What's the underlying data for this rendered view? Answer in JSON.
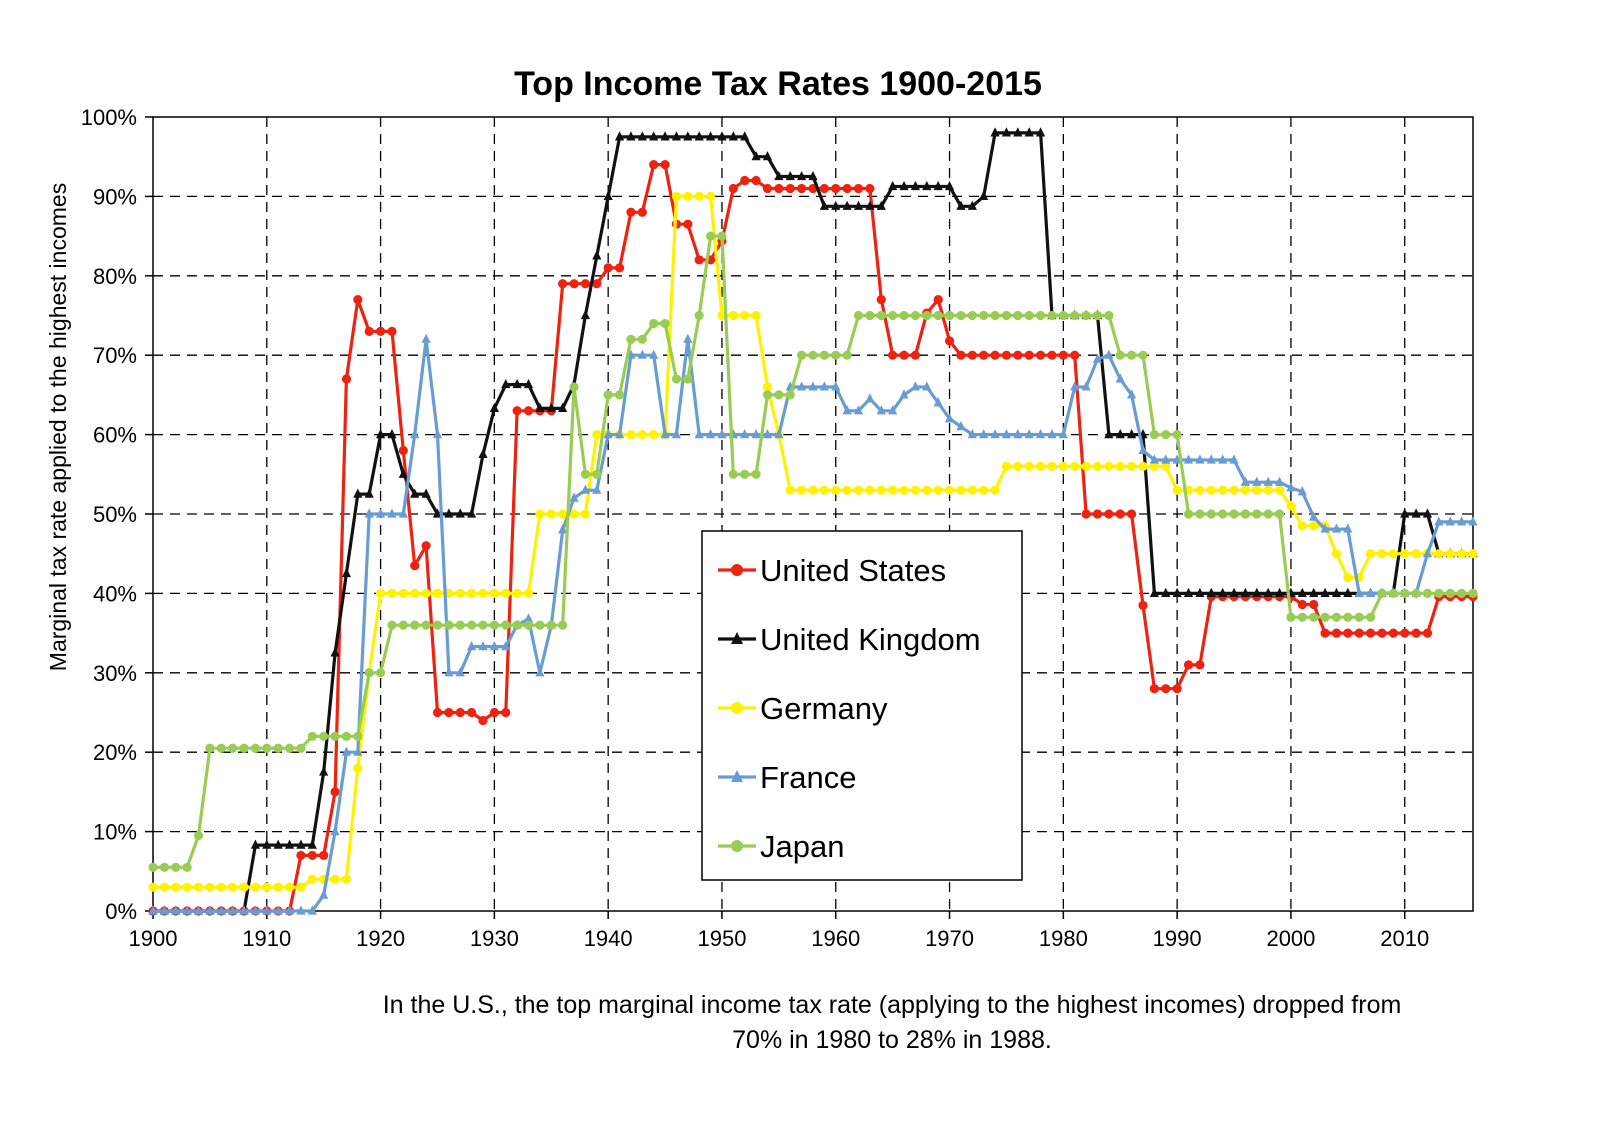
{
  "chart_data": {
    "type": "line",
    "title": "Top Income Tax Rates 1900-2015",
    "xlabel": "",
    "ylabel": "Marginal tax rate applied to the highest incomes",
    "xlim": [
      1900,
      2016
    ],
    "ylim": [
      0,
      100
    ],
    "xticks": [
      1900,
      1910,
      1920,
      1930,
      1940,
      1950,
      1960,
      1970,
      1980,
      1990,
      2000,
      2010
    ],
    "xtick_labels": [
      "1900",
      "1910",
      "1920",
      "1930",
      "1940",
      "1950",
      "1960",
      "1970",
      "1980",
      "1990",
      "2000",
      "2010"
    ],
    "yticks": [
      0,
      10,
      20,
      30,
      40,
      50,
      60,
      70,
      80,
      90,
      100
    ],
    "ytick_labels": [
      "0%",
      "10%",
      "20%",
      "30%",
      "40%",
      "50%",
      "60%",
      "70%",
      "80%",
      "90%",
      "100%"
    ],
    "grid": true,
    "legend_position": "center-right",
    "series": [
      {
        "name": "United States",
        "color": "#ee2211",
        "marker": "circle",
        "points": [
          [
            1900,
            0
          ],
          [
            1912,
            0
          ],
          [
            1913,
            7
          ],
          [
            1916,
            7
          ],
          [
            1916,
            15
          ],
          [
            1917,
            67
          ],
          [
            1918,
            77
          ],
          [
            1919,
            73
          ],
          [
            1921,
            73
          ],
          [
            1922,
            58
          ],
          [
            1923,
            43.5
          ],
          [
            1924,
            46
          ],
          [
            1925,
            25
          ],
          [
            1928,
            25
          ],
          [
            1929,
            24
          ],
          [
            1930,
            25
          ],
          [
            1931,
            25
          ],
          [
            1932,
            63
          ],
          [
            1935,
            63
          ],
          [
            1936,
            79
          ],
          [
            1940,
            79
          ],
          [
            1940,
            81
          ],
          [
            1941,
            81
          ],
          [
            1942,
            88
          ],
          [
            1943,
            88
          ],
          [
            1944,
            94
          ],
          [
            1945,
            94
          ],
          [
            1946,
            86.5
          ],
          [
            1947,
            86.5
          ],
          [
            1948,
            82
          ],
          [
            1949,
            82
          ],
          [
            1950,
            84.4
          ],
          [
            1951,
            91
          ],
          [
            1952,
            92
          ],
          [
            1953,
            92
          ],
          [
            1954,
            91
          ],
          [
            1963,
            91
          ],
          [
            1964,
            77
          ],
          [
            1965,
            70
          ],
          [
            1967,
            70
          ],
          [
            1968,
            75.3
          ],
          [
            1969,
            77
          ],
          [
            1970,
            71.8
          ],
          [
            1971,
            70
          ],
          [
            1981,
            70
          ],
          [
            1982,
            69.1
          ],
          [
            1982,
            50
          ],
          [
            1986,
            50
          ],
          [
            1987,
            38.5
          ],
          [
            1988,
            28
          ],
          [
            1990,
            28
          ],
          [
            1991,
            31
          ],
          [
            1992,
            31
          ],
          [
            1993,
            39.6
          ],
          [
            2000,
            39.6
          ],
          [
            2001,
            38.6
          ],
          [
            2002,
            38.6
          ],
          [
            2003,
            35
          ],
          [
            2012,
            35
          ],
          [
            2013,
            39.6
          ],
          [
            2016,
            39.6
          ]
        ]
      },
      {
        "name": "United Kingdom",
        "color": "#111111",
        "marker": "triangle",
        "points": [
          [
            1900,
            0
          ],
          [
            1909,
            0
          ],
          [
            1909,
            8.3
          ],
          [
            1914,
            8.3
          ],
          [
            1915,
            17.5
          ],
          [
            1916,
            32.5
          ],
          [
            1917,
            42.5
          ],
          [
            1918,
            42.5
          ],
          [
            1918,
            52.5
          ],
          [
            1919,
            52.5
          ],
          [
            1920,
            60
          ],
          [
            1921,
            60
          ],
          [
            1922,
            55
          ],
          [
            1923,
            52.5
          ],
          [
            1924,
            52.5
          ],
          [
            1925,
            50
          ],
          [
            1928,
            50
          ],
          [
            1929,
            57.5
          ],
          [
            1930,
            63.3
          ],
          [
            1931,
            66.3
          ],
          [
            1933,
            66.3
          ],
          [
            1934,
            63.3
          ],
          [
            1935,
            63.3
          ],
          [
            1936,
            63.3
          ],
          [
            1937,
            66.3
          ],
          [
            1938,
            75
          ],
          [
            1939,
            82.5
          ],
          [
            1940,
            90
          ],
          [
            1941,
            97.5
          ],
          [
            1952,
            97.5
          ],
          [
            1953,
            95
          ],
          [
            1954,
            95
          ],
          [
            1955,
            92.5
          ],
          [
            1958,
            92.5
          ],
          [
            1959,
            88.75
          ],
          [
            1964,
            88.75
          ],
          [
            1965,
            91.25
          ],
          [
            1970,
            91.25
          ],
          [
            1971,
            88.75
          ],
          [
            1972,
            88.75
          ],
          [
            1973,
            90
          ],
          [
            1974,
            98
          ],
          [
            1978,
            98
          ],
          [
            1979,
            75
          ],
          [
            1983,
            75
          ],
          [
            1984,
            60
          ],
          [
            1987,
            60
          ],
          [
            1988,
            40
          ],
          [
            2009,
            40
          ],
          [
            2010,
            50
          ],
          [
            2012,
            50
          ],
          [
            2013,
            45
          ],
          [
            2016,
            45
          ]
        ]
      },
      {
        "name": "Germany",
        "color": "#fff200",
        "marker": "circle",
        "points": [
          [
            1900,
            3
          ],
          [
            1913,
            3
          ],
          [
            1914,
            4
          ],
          [
            1917,
            4
          ],
          [
            1918,
            18
          ],
          [
            1919,
            30
          ],
          [
            1920,
            40
          ],
          [
            1931,
            40
          ],
          [
            1932,
            40
          ],
          [
            1933,
            40
          ],
          [
            1934,
            50
          ],
          [
            1938,
            50
          ],
          [
            1939,
            60
          ],
          [
            1945,
            60
          ],
          [
            1946,
            90
          ],
          [
            1949,
            90
          ],
          [
            1950,
            75
          ],
          [
            1953,
            75
          ],
          [
            1954,
            66
          ],
          [
            1955,
            60
          ],
          [
            1956,
            53
          ],
          [
            1974,
            53
          ],
          [
            1975,
            56
          ],
          [
            1989,
            56
          ],
          [
            1990,
            53
          ],
          [
            1999,
            53
          ],
          [
            2000,
            51
          ],
          [
            2001,
            48.5
          ],
          [
            2003,
            48.5
          ],
          [
            2004,
            45
          ],
          [
            2005,
            42
          ],
          [
            2006,
            42
          ],
          [
            2007,
            45
          ],
          [
            2016,
            45
          ]
        ]
      },
      {
        "name": "France",
        "color": "#6a9cd4",
        "marker": "triangle",
        "points": [
          [
            1900,
            0
          ],
          [
            1914,
            0
          ],
          [
            1915,
            2
          ],
          [
            1916,
            10
          ],
          [
            1917,
            20
          ],
          [
            1918,
            20
          ],
          [
            1919,
            50
          ],
          [
            1922,
            50
          ],
          [
            1923,
            60
          ],
          [
            1924,
            72
          ],
          [
            1925,
            60
          ],
          [
            1926,
            30
          ],
          [
            1927,
            30
          ],
          [
            1928,
            33.3
          ],
          [
            1931,
            33.3
          ],
          [
            1932,
            36
          ],
          [
            1933,
            36.8
          ],
          [
            1934,
            30
          ],
          [
            1935,
            36
          ],
          [
            1936,
            48
          ],
          [
            1937,
            52
          ],
          [
            1938,
            53
          ],
          [
            1939,
            53
          ],
          [
            1940,
            60
          ],
          [
            1941,
            60
          ],
          [
            1942,
            70
          ],
          [
            1944,
            70
          ],
          [
            1945,
            60
          ],
          [
            1946,
            60
          ],
          [
            1947,
            72
          ],
          [
            1948,
            60
          ],
          [
            1955,
            60
          ],
          [
            1956,
            66
          ],
          [
            1960,
            66
          ],
          [
            1961,
            63
          ],
          [
            1962,
            63
          ],
          [
            1963,
            64.5
          ],
          [
            1964,
            63
          ],
          [
            1965,
            63
          ],
          [
            1966,
            65
          ],
          [
            1967,
            66
          ],
          [
            1968,
            66
          ],
          [
            1969,
            64
          ],
          [
            1970,
            62
          ],
          [
            1971,
            61
          ],
          [
            1972,
            60
          ],
          [
            1980,
            60
          ],
          [
            1981,
            66
          ],
          [
            1982,
            66
          ],
          [
            1983,
            69.5
          ],
          [
            1984,
            70
          ],
          [
            1985,
            67
          ],
          [
            1986,
            65
          ],
          [
            1987,
            58
          ],
          [
            1988,
            56.8
          ],
          [
            1995,
            56.8
          ],
          [
            1996,
            54
          ],
          [
            1999,
            54
          ],
          [
            2000,
            53.3
          ],
          [
            2001,
            52.8
          ],
          [
            2002,
            49.6
          ],
          [
            2003,
            48.1
          ],
          [
            2005,
            48.1
          ],
          [
            2006,
            40
          ],
          [
            2011,
            40
          ],
          [
            2012,
            45
          ],
          [
            2013,
            49
          ],
          [
            2016,
            49
          ]
        ]
      },
      {
        "name": "Japan",
        "color": "#99cc55",
        "marker": "circle",
        "points": [
          [
            1900,
            5.5
          ],
          [
            1903,
            5.5
          ],
          [
            1904,
            9.5
          ],
          [
            1905,
            20.5
          ],
          [
            1913,
            20.5
          ],
          [
            1914,
            22
          ],
          [
            1918,
            22
          ],
          [
            1919,
            30
          ],
          [
            1920,
            30
          ],
          [
            1921,
            36
          ],
          [
            1936,
            36
          ],
          [
            1937,
            66
          ],
          [
            1938,
            55
          ],
          [
            1939,
            55
          ],
          [
            1940,
            65
          ],
          [
            1941,
            65
          ],
          [
            1942,
            72
          ],
          [
            1943,
            72
          ],
          [
            1944,
            74
          ],
          [
            1945,
            74
          ],
          [
            1946,
            67
          ],
          [
            1947,
            67
          ],
          [
            1948,
            75
          ],
          [
            1949,
            85
          ],
          [
            1950,
            85
          ],
          [
            1951,
            55
          ],
          [
            1953,
            55
          ],
          [
            1954,
            65
          ],
          [
            1956,
            65
          ],
          [
            1957,
            70
          ],
          [
            1961,
            70
          ],
          [
            1962,
            75
          ],
          [
            1984,
            75
          ],
          [
            1985,
            70
          ],
          [
            1987,
            70
          ],
          [
            1988,
            60
          ],
          [
            1990,
            60
          ],
          [
            1991,
            50
          ],
          [
            1999,
            50
          ],
          [
            2000,
            37
          ],
          [
            2007,
            37
          ],
          [
            2008,
            40
          ],
          [
            2016,
            40
          ]
        ]
      }
    ]
  },
  "caption": {
    "line1": "In the U.S., the top marginal income tax rate (applying to the highest incomes) dropped from",
    "line2": "70% in 1980 to 28% in 1988."
  }
}
